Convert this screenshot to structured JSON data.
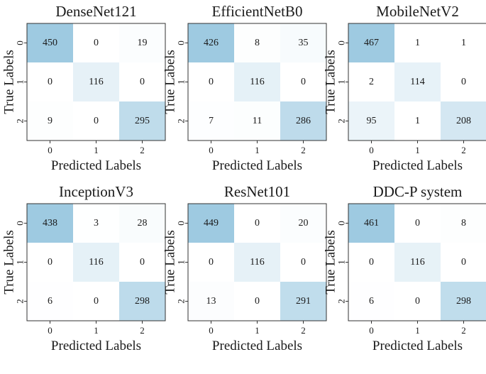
{
  "chart_data": [
    {
      "type": "heatmap",
      "title": "DenseNet121",
      "xlabel": "Predicted Labels",
      "ylabel": "True Labels",
      "x_ticks": [
        "0",
        "1",
        "2"
      ],
      "y_ticks": [
        "0",
        "1",
        "2"
      ],
      "matrix": [
        [
          450,
          0,
          19
        ],
        [
          0,
          116,
          0
        ],
        [
          9,
          0,
          295
        ]
      ]
    },
    {
      "type": "heatmap",
      "title": "EfficientNetB0",
      "xlabel": "Predicted Labels",
      "ylabel": "True Labels",
      "x_ticks": [
        "0",
        "1",
        "2"
      ],
      "y_ticks": [
        "0",
        "1",
        "2"
      ],
      "matrix": [
        [
          426,
          8,
          35
        ],
        [
          0,
          116,
          0
        ],
        [
          7,
          11,
          286
        ]
      ]
    },
    {
      "type": "heatmap",
      "title": "MobileNetV2",
      "xlabel": "Predicted Labels",
      "ylabel": "True Labels",
      "x_ticks": [
        "0",
        "1",
        "2"
      ],
      "y_ticks": [
        "0",
        "1",
        "2"
      ],
      "matrix": [
        [
          467,
          1,
          1
        ],
        [
          2,
          114,
          0
        ],
        [
          95,
          1,
          208
        ]
      ]
    },
    {
      "type": "heatmap",
      "title": "InceptionV3",
      "xlabel": "Predicted Labels",
      "ylabel": "True Labels",
      "x_ticks": [
        "0",
        "1",
        "2"
      ],
      "y_ticks": [
        "0",
        "1",
        "2"
      ],
      "matrix": [
        [
          438,
          3,
          28
        ],
        [
          0,
          116,
          0
        ],
        [
          6,
          0,
          298
        ]
      ]
    },
    {
      "type": "heatmap",
      "title": "ResNet101",
      "xlabel": "Predicted Labels",
      "ylabel": "True Labels",
      "x_ticks": [
        "0",
        "1",
        "2"
      ],
      "y_ticks": [
        "0",
        "1",
        "2"
      ],
      "matrix": [
        [
          449,
          0,
          20
        ],
        [
          0,
          116,
          0
        ],
        [
          13,
          0,
          291
        ]
      ]
    },
    {
      "type": "heatmap",
      "title": "DDC-P system",
      "xlabel": "Predicted Labels",
      "ylabel": "True Labels",
      "x_ticks": [
        "0",
        "1",
        "2"
      ],
      "y_ticks": [
        "0",
        "1",
        "2"
      ],
      "matrix": [
        [
          461,
          0,
          8
        ],
        [
          0,
          116,
          0
        ],
        [
          6,
          0,
          298
        ]
      ]
    }
  ],
  "colors": {
    "high": "#9ecae1",
    "low": "#ffffff",
    "frame": "#333333",
    "text": "#1a1a1a"
  }
}
